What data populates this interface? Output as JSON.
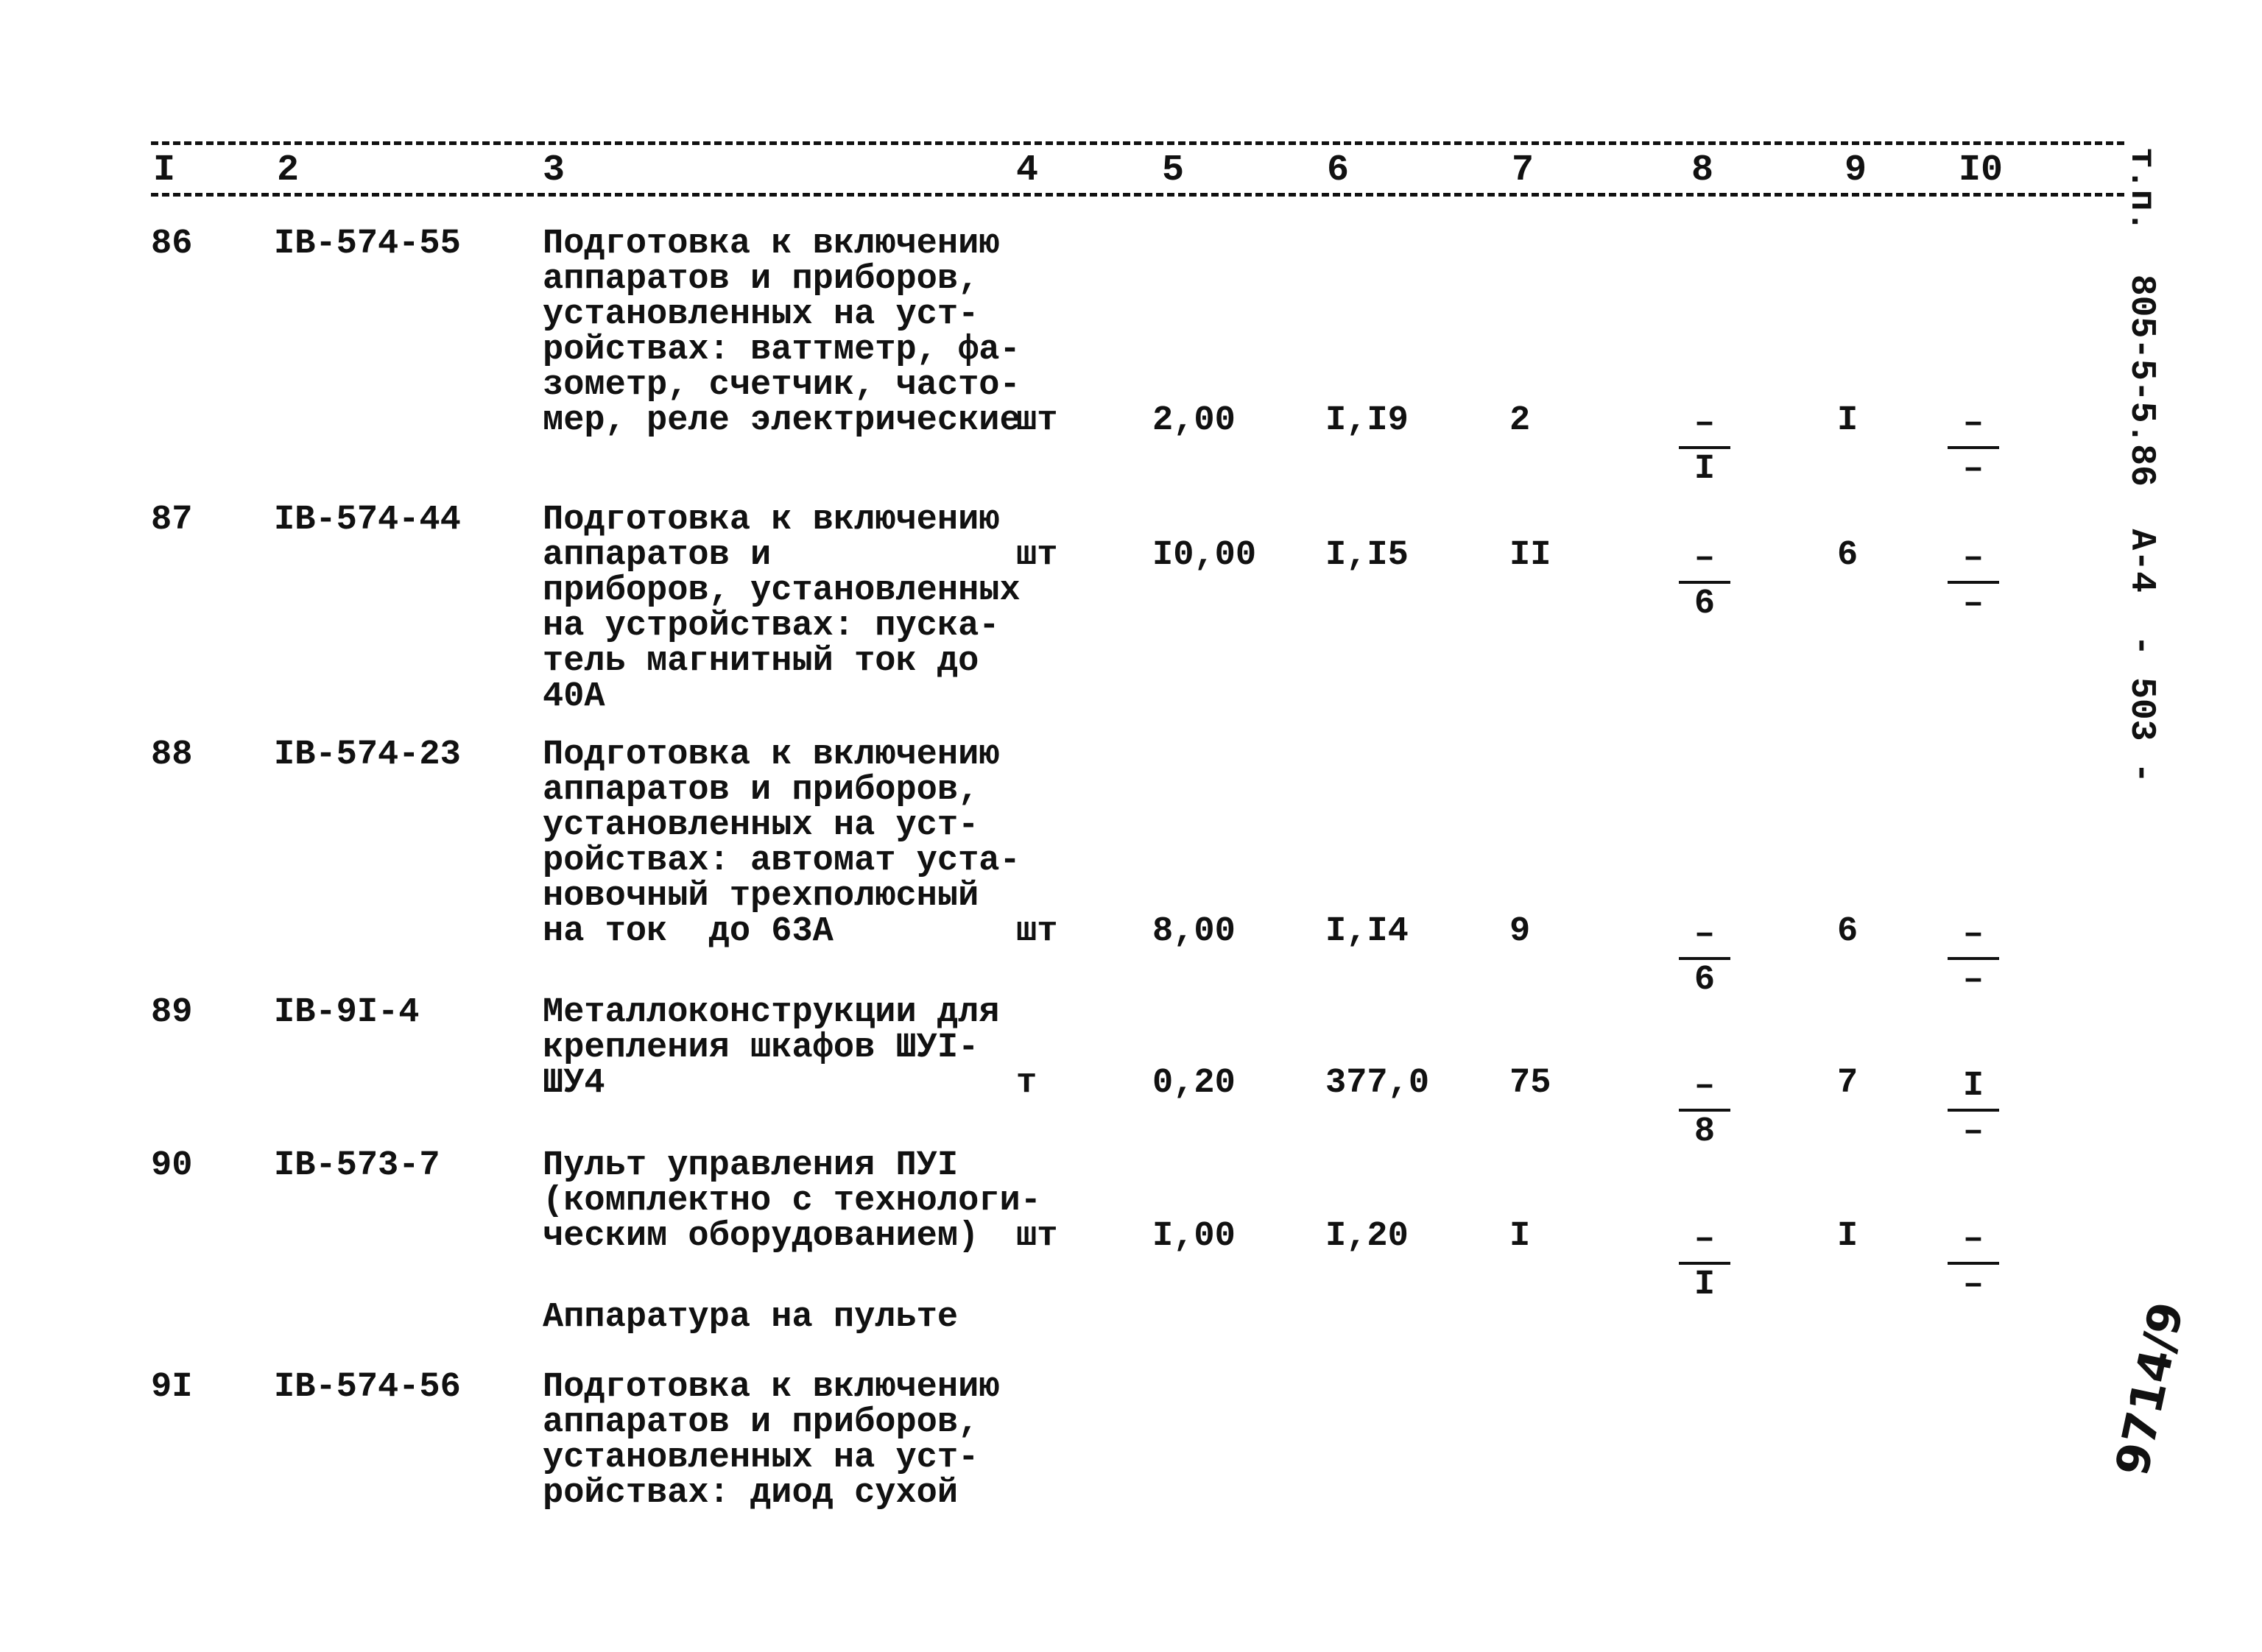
{
  "header": {
    "columns": [
      "I",
      "2",
      "3",
      "4",
      "5",
      "6",
      "7",
      "8",
      "9",
      "I0"
    ]
  },
  "side_label": "т.п.  805-5-5.86  А-4  - 503 -",
  "handwritten_note": "9714/9",
  "rows": [
    {
      "num": "86",
      "code": "IВ-574-55",
      "desc": [
        "Подготовка к включению",
        "аппаратов и приборов,",
        "установленных на уст-",
        "ройствах: ваттметр, фа-",
        "зометр, счетчик, часто-",
        "мер, реле электрические"
      ],
      "unit": "шт",
      "c5": "2,00",
      "c6": "I,I9",
      "c7": "2",
      "c8": {
        "top": "–",
        "bottom": "I"
      },
      "c9": "I",
      "c10": {
        "top": "–",
        "bottom": "–"
      }
    },
    {
      "num": "87",
      "code": "IВ-574-44",
      "desc": [
        "Подготовка к включению",
        "аппаратов и",
        "приборов, установленных",
        "на устройствах: пуска-",
        "тель магнитный ток до",
        "40А"
      ],
      "unit": "шт",
      "c5": "I0,00",
      "c6": "I,I5",
      "c7": "II",
      "c8": {
        "top": "–",
        "bottom": "6"
      },
      "c9": "6",
      "c10": {
        "top": "–",
        "bottom": "–"
      }
    },
    {
      "num": "88",
      "code": "IВ-574-23",
      "desc": [
        "Подготовка к включению",
        "аппаратов и приборов,",
        "установленных на уст-",
        "ройствах: автомат уста-",
        "новочный трехполюсный",
        "на ток  до 63А"
      ],
      "unit": "шт",
      "c5": "8,00",
      "c6": "I,I4",
      "c7": "9",
      "c8": {
        "top": "–",
        "bottom": "6"
      },
      "c9": "6",
      "c10": {
        "top": "–",
        "bottom": "–"
      }
    },
    {
      "num": "89",
      "code": "IВ-9I-4",
      "desc": [
        "Металлоконструкции для",
        "крепления шкафов ШУI-",
        "ШУ4"
      ],
      "unit": "т",
      "c5": "0,20",
      "c6": "377,0",
      "c7": "75",
      "c8": {
        "top": "–",
        "bottom": "8"
      },
      "c9": "7",
      "c10": {
        "top": "I",
        "bottom": "–"
      }
    },
    {
      "num": "90",
      "code": "IВ-573-7",
      "desc": [
        "Пульт управления ПУI",
        "(комплектно с технологи-",
        "ческим оборудованием)"
      ],
      "unit": "шт",
      "c5": "I,00",
      "c6": "I,20",
      "c7": "I",
      "c8": {
        "top": "–",
        "bottom": "I"
      },
      "c9": "I",
      "c10": {
        "top": "–",
        "bottom": "–"
      }
    },
    {
      "num": "",
      "code": "",
      "desc": [
        "Аппаратура на пульте"
      ]
    },
    {
      "num": "9I",
      "code": "IВ-574-56",
      "desc": [
        "Подготовка к включению",
        "аппаратов и приборов,",
        "установленных на уст-",
        "ройствах: диод сухой"
      ]
    }
  ]
}
